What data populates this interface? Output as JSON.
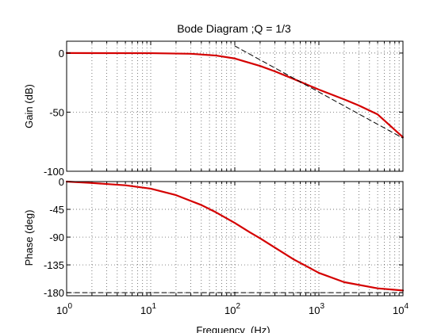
{
  "chart_data": {
    "type": "line",
    "title": "Bode Diagram ;Q = 1/3",
    "xlabel": "Frequency  (Hz)",
    "x_scale": "log",
    "xlim": [
      1,
      10000
    ],
    "x_ticks": [
      1,
      10,
      100,
      1000,
      10000
    ],
    "x_tick_labels": [
      {
        "base": "10",
        "exp": "0"
      },
      {
        "base": "10",
        "exp": "1"
      },
      {
        "base": "10",
        "exp": "2"
      },
      {
        "base": "10",
        "exp": "3"
      },
      {
        "base": "10",
        "exp": "4"
      }
    ],
    "grid": true,
    "panels": [
      {
        "name": "gain",
        "ylabel": "Gain (dB)",
        "ylim": [
          -100,
          10
        ],
        "y_ticks": [
          0,
          -50,
          -100
        ],
        "y_tick_labels": [
          "0",
          "-50",
          "-100"
        ],
        "series": [
          {
            "color": "#d40000",
            "style": "solid",
            "points": [
              [
                1,
                0
              ],
              [
                10,
                -0.1
              ],
              [
                30,
                -0.6
              ],
              [
                60,
                -2.1
              ],
              [
                100,
                -4.6
              ],
              [
                200,
                -10.9
              ],
              [
                300,
                -15.5
              ],
              [
                500,
                -21.9
              ],
              [
                700,
                -26.3
              ],
              [
                1000,
                -30.9
              ],
              [
                2000,
                -39.2
              ],
              [
                3000,
                -44.4
              ],
              [
                5000,
                -51.9
              ],
              [
                10000,
                -71.2
              ]
            ]
          },
          {
            "color": "#000000",
            "style": "dashed",
            "points": [
              [
                100,
                6
              ],
              [
                10000,
                -72
              ]
            ]
          }
        ]
      },
      {
        "name": "phase",
        "ylabel": "Phase (deg)",
        "ylim": [
          -185,
          0
        ],
        "y_ticks": [
          0,
          -45,
          -90,
          -135,
          -180
        ],
        "y_tick_labels": [
          "0",
          "-45",
          "-90",
          "-135",
          "-180"
        ],
        "series": [
          {
            "color": "#d40000",
            "style": "solid",
            "points": [
              [
                1,
                0
              ],
              [
                2,
                -2.3
              ],
              [
                5,
                -6
              ],
              [
                10,
                -11.5
              ],
              [
                20,
                -22
              ],
              [
                40,
                -38
              ],
              [
                60,
                -50
              ],
              [
                100,
                -67
              ],
              [
                150,
                -82
              ],
              [
                200,
                -92
              ],
              [
                300,
                -107
              ],
              [
                500,
                -126
              ],
              [
                1000,
                -148
              ],
              [
                2000,
                -163
              ],
              [
                5000,
                -173
              ],
              [
                10000,
                -176.5
              ]
            ]
          },
          {
            "color": "#000000",
            "style": "dashed",
            "points": [
              [
                1,
                -180
              ],
              [
                10000,
                -180
              ]
            ]
          }
        ]
      }
    ]
  }
}
